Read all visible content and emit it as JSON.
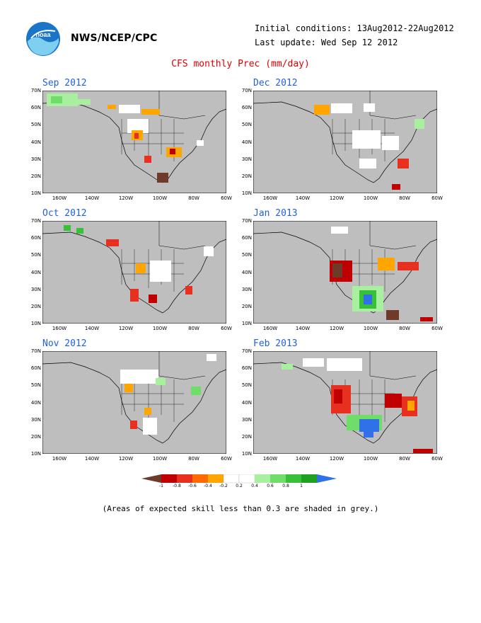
{
  "header": {
    "agency": "NWS/NCEP/CPC",
    "initial_conditions": "Initial conditions: 13Aug2012-22Aug2012",
    "last_update": "Last update: Wed Sep 12 2012",
    "title": "CFS monthly Prec (mm/day)"
  },
  "axes": {
    "lat_labels": [
      "70N",
      "60N",
      "50N",
      "40N",
      "30N",
      "20N",
      "10N"
    ],
    "lon_labels": [
      "160W",
      "140W",
      "120W",
      "100W",
      "80W",
      "60W"
    ]
  },
  "panels": [
    {
      "month": "Sep 2012"
    },
    {
      "month": "Dec 2012"
    },
    {
      "month": "Oct 2012"
    },
    {
      "month": "Jan 2013"
    },
    {
      "month": "Nov 2012"
    },
    {
      "month": "Feb 2013"
    }
  ],
  "colors": {
    "skill_mask": "#bebebe",
    "ocean_bg": "#bebebe",
    "scale": [
      "#6e3a2a",
      "#c00000",
      "#e83020",
      "#ff6a00",
      "#ffa500",
      "#ffffff",
      "#ffffff",
      "#a8f0a0",
      "#70dc6a",
      "#38c038",
      "#20a020",
      "#3070e8"
    ]
  },
  "legend": {
    "labels": [
      "-1",
      "-0.8",
      "-0.6",
      "-0.4",
      "-0.2",
      "0.2",
      "0.4",
      "0.6",
      "0.8",
      "1"
    ]
  },
  "footnote": "(Areas of expected skill less than 0.3 are shaded in grey.)"
}
